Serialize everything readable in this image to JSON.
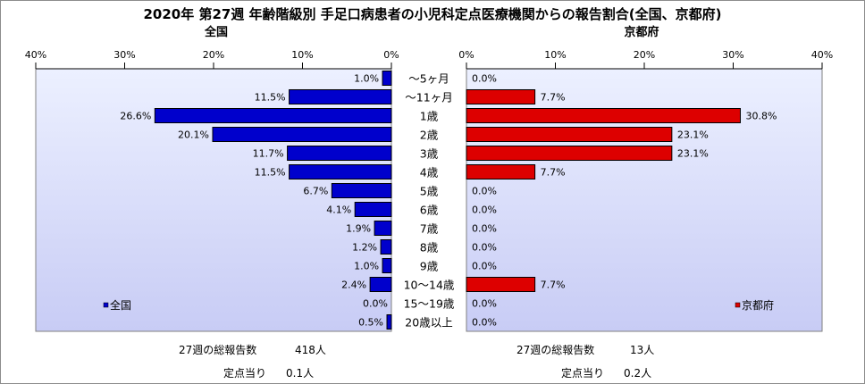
{
  "title": "2020年 第27週 年齢階級別 手足口病患者の小児科定点医療機関からの報告割合(全国、京都府)",
  "left_label": "全国",
  "right_label": "京都府",
  "colors": {
    "left_bar": "#0000cc",
    "right_bar": "#dd0000",
    "plot_bg_top": "#ecf0ff",
    "plot_bg_bottom": "#c8ccf5"
  },
  "chart_data": [
    {
      "type": "bar",
      "orientation": "horizontal",
      "direction": "right-to-left",
      "title": "全国",
      "categories": [
        "～5ヶ月",
        "～11ヶ月",
        "1歳",
        "2歳",
        "3歳",
        "4歳",
        "5歳",
        "6歳",
        "7歳",
        "8歳",
        "9歳",
        "10～14歳",
        "15～19歳",
        "20歳以上"
      ],
      "series": [
        {
          "name": "全国",
          "values": [
            1.0,
            11.5,
            26.6,
            20.1,
            11.7,
            11.5,
            6.7,
            4.1,
            1.9,
            1.2,
            1.0,
            2.4,
            0.0,
            0.5
          ]
        }
      ],
      "data_labels": [
        "1.0%",
        "11.5%",
        "26.6%",
        "20.1%",
        "11.7%",
        "11.5%",
        "6.7%",
        "4.1%",
        "1.9%",
        "1.2%",
        "1.0%",
        "2.4%",
        "0.0%",
        "0.5%"
      ],
      "xlim": [
        0,
        40
      ],
      "ticks": [
        "40%",
        "30%",
        "20%",
        "10%",
        "0%"
      ],
      "legend": "bottom-left"
    },
    {
      "type": "bar",
      "orientation": "horizontal",
      "direction": "left-to-right",
      "title": "京都府",
      "categories": [
        "～5ヶ月",
        "～11ヶ月",
        "1歳",
        "2歳",
        "3歳",
        "4歳",
        "5歳",
        "6歳",
        "7歳",
        "8歳",
        "9歳",
        "10～14歳",
        "15～19歳",
        "20歳以上"
      ],
      "series": [
        {
          "name": "京都府",
          "values": [
            0.0,
            7.7,
            30.8,
            23.1,
            23.1,
            7.7,
            0.0,
            0.0,
            0.0,
            0.0,
            0.0,
            7.7,
            0.0,
            0.0
          ]
        }
      ],
      "data_labels": [
        "0.0%",
        "7.7%",
        "30.8%",
        "23.1%",
        "23.1%",
        "7.7%",
        "0.0%",
        "0.0%",
        "0.0%",
        "0.0%",
        "0.0%",
        "7.7%",
        "0.0%",
        "0.0%"
      ],
      "xlim": [
        0,
        40
      ],
      "ticks": [
        "0%",
        "10%",
        "20%",
        "30%",
        "40%"
      ],
      "legend": "bottom-right"
    }
  ],
  "footer": {
    "left": {
      "total_label": "27週の総報告数",
      "total_value": "418人",
      "per_label": "定点当り",
      "per_value": "0.1人"
    },
    "right": {
      "total_label": "27週の総報告数",
      "total_value": "13人",
      "per_label": "定点当り",
      "per_value": "0.2人"
    }
  }
}
